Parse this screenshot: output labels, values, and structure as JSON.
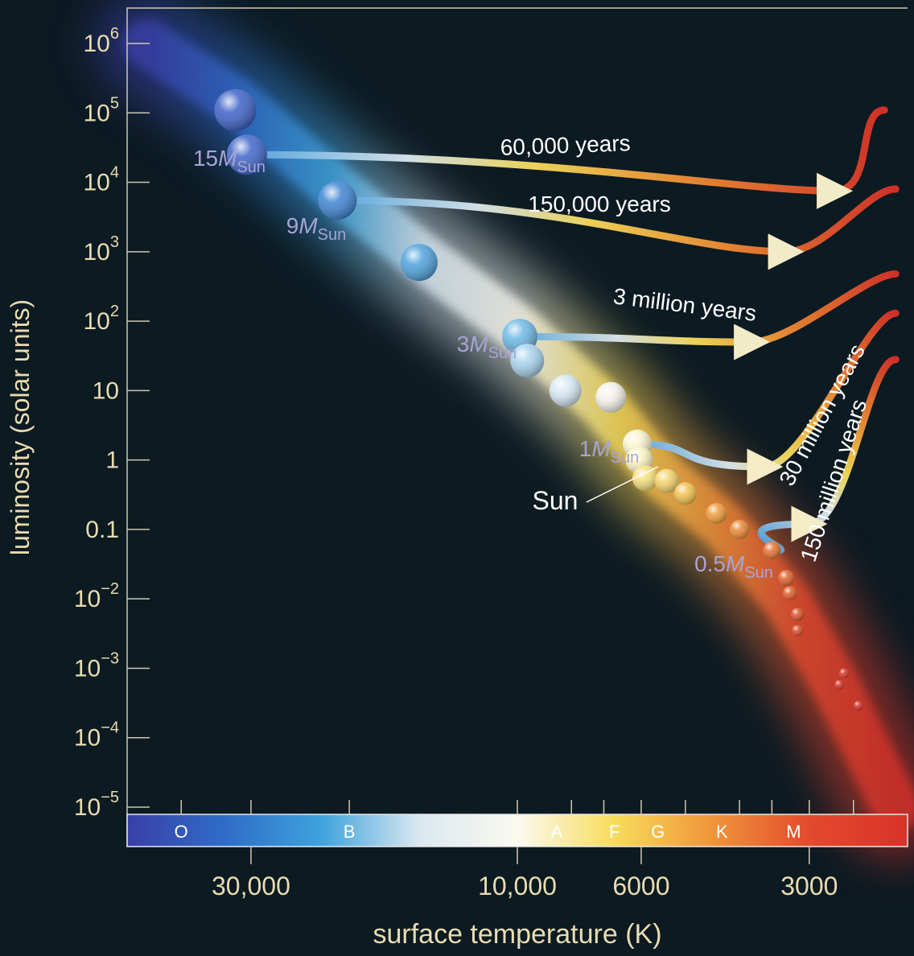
{
  "chart_data": {
    "type": "scatter",
    "xlabel": "surface temperature (K)",
    "ylabel": "luminosity (solar units)",
    "x_scale": "log-reversed",
    "y_scale": "log",
    "xlim": [
      50000,
      2000
    ],
    "ylim": [
      1e-05,
      1000000
    ],
    "grid": false,
    "x_ticks": [
      {
        "value": 30000,
        "label": "30,000"
      },
      {
        "value": 10000,
        "label": "10,000"
      },
      {
        "value": 6000,
        "label": "6000"
      },
      {
        "value": 3000,
        "label": "3000"
      }
    ],
    "y_ticks": [
      {
        "value": 1000000,
        "base": "10",
        "exp": "6"
      },
      {
        "value": 100000,
        "base": "10",
        "exp": "5"
      },
      {
        "value": 10000,
        "base": "10",
        "exp": "4"
      },
      {
        "value": 1000,
        "base": "10",
        "exp": "3"
      },
      {
        "value": 100,
        "base": "10",
        "exp": "2"
      },
      {
        "value": 10,
        "base": "10",
        "exp": ""
      },
      {
        "value": 1,
        "base": "1",
        "exp": ""
      },
      {
        "value": 0.1,
        "base": "0.1",
        "exp": ""
      },
      {
        "value": 0.01,
        "base": "10",
        "exp": "−2"
      },
      {
        "value": 0.001,
        "base": "10",
        "exp": "−3"
      },
      {
        "value": 0.0001,
        "base": "10",
        "exp": "−4"
      },
      {
        "value": 1e-05,
        "base": "10",
        "exp": "−5"
      }
    ],
    "spectral_classes": [
      {
        "label": "O",
        "temp": 40000
      },
      {
        "label": "B",
        "temp": 20000
      },
      {
        "label": "A",
        "temp": 8500
      },
      {
        "label": "F",
        "temp": 6700
      },
      {
        "label": "G",
        "temp": 5600
      },
      {
        "label": "K",
        "temp": 4300
      },
      {
        "label": "M",
        "temp": 3200
      }
    ],
    "spectral_colors": [
      "#3a3fa8",
      "#2f6cc8",
      "#3fa3dc",
      "#dbe8f0",
      "#fbfaf0",
      "#f7dc5a",
      "#f0953a",
      "#e34a2e",
      "#d9322a"
    ],
    "main_sequence_stars": [
      {
        "temp": 32000,
        "lum": 110000,
        "color": "#3e63c8"
      },
      {
        "temp": 30500,
        "lum": 25000,
        "color": "#3f66c9"
      },
      {
        "temp": 21000,
        "lum": 5500,
        "color": "#3f84d2"
      },
      {
        "temp": 15000,
        "lum": 700,
        "color": "#4fa2dc"
      },
      {
        "temp": 9900,
        "lum": 60,
        "color": "#6db8e4"
      },
      {
        "temp": 9600,
        "lum": 27,
        "color": "#a7d3ee"
      },
      {
        "temp": 8200,
        "lum": 10,
        "color": "#d6e8f3"
      },
      {
        "temp": 6800,
        "lum": 8,
        "color": "#f3f1ea"
      },
      {
        "temp": 6100,
        "lum": 1.7,
        "color": "#faf4cf"
      },
      {
        "temp": 6050,
        "lum": 1,
        "color": "#fbf3c3"
      },
      {
        "temp": 5900,
        "lum": 0.55,
        "color": "#f6df7a"
      },
      {
        "temp": 5400,
        "lum": 0.5,
        "color": "#f4d36a"
      },
      {
        "temp": 5000,
        "lum": 0.33,
        "color": "#f2c14f"
      },
      {
        "temp": 4400,
        "lum": 0.17,
        "color": "#ee9b38"
      },
      {
        "temp": 4000,
        "lum": 0.1,
        "color": "#ea8a34"
      },
      {
        "temp": 3500,
        "lum": 0.05,
        "color": "#e5702e"
      },
      {
        "temp": 3300,
        "lum": 0.02,
        "color": "#e0622b"
      },
      {
        "temp": 3250,
        "lum": 0.012,
        "color": "#df5a2a"
      },
      {
        "temp": 3150,
        "lum": 0.006,
        "color": "#dc5229"
      },
      {
        "temp": 3150,
        "lum": 0.0035,
        "color": "#da4c28"
      },
      {
        "temp": 2600,
        "lum": 0.00085,
        "color": "#d83a2c"
      },
      {
        "temp": 2650,
        "lum": 0.00058,
        "color": "#d8352b"
      },
      {
        "temp": 2450,
        "lum": 0.00029,
        "color": "#d6302b"
      }
    ],
    "mass_labels": [
      {
        "coef": "15",
        "sub": "Sun",
        "temp": 30500,
        "lum": 25000
      },
      {
        "coef": "9",
        "sub": "Sun",
        "temp": 21000,
        "lum": 5500
      },
      {
        "coef": "3",
        "sub": "Sun",
        "temp": 9800,
        "lum": 40
      },
      {
        "coef": "1",
        "sub": "Sun",
        "temp": 6050,
        "lum": 1
      },
      {
        "coef": "0.5",
        "sub": "Sun",
        "temp": 3400,
        "lum": 0.035
      }
    ],
    "mass_symbol": "M",
    "sun_label": "Sun",
    "tracks": [
      {
        "label": "60,000 years",
        "from": [
          {
            "temp": 2200,
            "lum": 110000
          },
          {
            "temp": 2700,
            "lum": 7500
          }
        ],
        "to": {
          "temp": 30500,
          "lum": 25000
        }
      },
      {
        "label": "150,000 years",
        "from": [
          {
            "temp": 2100,
            "lum": 8000
          },
          {
            "temp": 3300,
            "lum": 1000
          }
        ],
        "to": {
          "temp": 21000,
          "lum": 5500
        }
      },
      {
        "label": "3 million years",
        "from": [
          {
            "temp": 2100,
            "lum": 480
          },
          {
            "temp": 3800,
            "lum": 50
          }
        ],
        "to": {
          "temp": 9900,
          "lum": 60
        }
      },
      {
        "label": "30 million years",
        "from": [
          {
            "temp": 2100,
            "lum": 130
          },
          {
            "temp": 3600,
            "lum": 0.8
          }
        ],
        "to": {
          "temp": 6100,
          "lum": 1.7
        }
      },
      {
        "label": "150 million years",
        "from": [
          {
            "temp": 2100,
            "lum": 28
          },
          {
            "temp": 3000,
            "lum": 0.12
          }
        ],
        "to": {
          "temp": 3400,
          "lum": 0.05
        }
      }
    ]
  }
}
